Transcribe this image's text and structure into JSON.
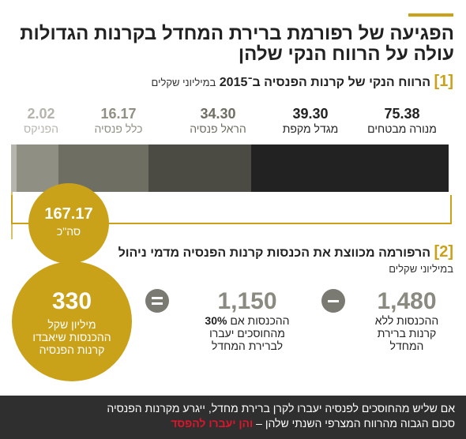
{
  "title": {
    "line1": "הפגיעה של רפורמת ברירת המחדל בקרנות הגדולות",
    "line2": "עולה על הרווח הנקי שלהן"
  },
  "section1": {
    "number": "[1]",
    "heading": "הרווח הנקי של קרנות הפנסיה ב־2015",
    "unit": "במיליוני שקלים"
  },
  "chart_data": {
    "type": "bar",
    "categories": [
      "מנורה מבטחים",
      "מגדל מקפת",
      "הראל פנסיה",
      "כלל פנסיה",
      "הפניקס"
    ],
    "values": [
      75.38,
      39.3,
      34.3,
      16.17,
      2.02
    ],
    "labels": [
      "75.38",
      "39.30",
      "34.30",
      "16.17",
      "2.02"
    ],
    "colors": [
      "#222222",
      "#4b4b44",
      "#6e6e63",
      "#8f8f84",
      "#b5b5ad"
    ],
    "total": {
      "value": "167.17",
      "unit": "סה\"כ"
    }
  },
  "section2": {
    "number": "[2]",
    "heading": "הרפורמה מכווצת את הכנסות קרנות הפנסיה מדמי ניהול",
    "unit": "במיליוני שקלים",
    "items": [
      {
        "value": "1,480",
        "line1": "ההכנסות ללא",
        "line2": "קרנות ברירת",
        "line3": "המחדל"
      },
      {
        "value": "1,150",
        "line1_prefix": "ההכנסות אם ",
        "line1_bold": "30%",
        "line2": "מהחוסכים יעברו",
        "line3": "לברירת המחדל"
      }
    ],
    "result": {
      "value": "330",
      "line1": "מיליון שקל",
      "line2": "ההכנסות שיאבדו",
      "line3": "קרנות הפנסיה"
    }
  },
  "footer": {
    "line1": "אם שליש מהחוסכים לפנסיה יעברו לקרן ברירת מחדל, ייגרע מקרנות הפנסיה",
    "line2_prefix": "סכום הגבוה מהרווח המצרפי השנתי שלהן – ",
    "line2_highlight": "והן יעברו להפסד"
  }
}
